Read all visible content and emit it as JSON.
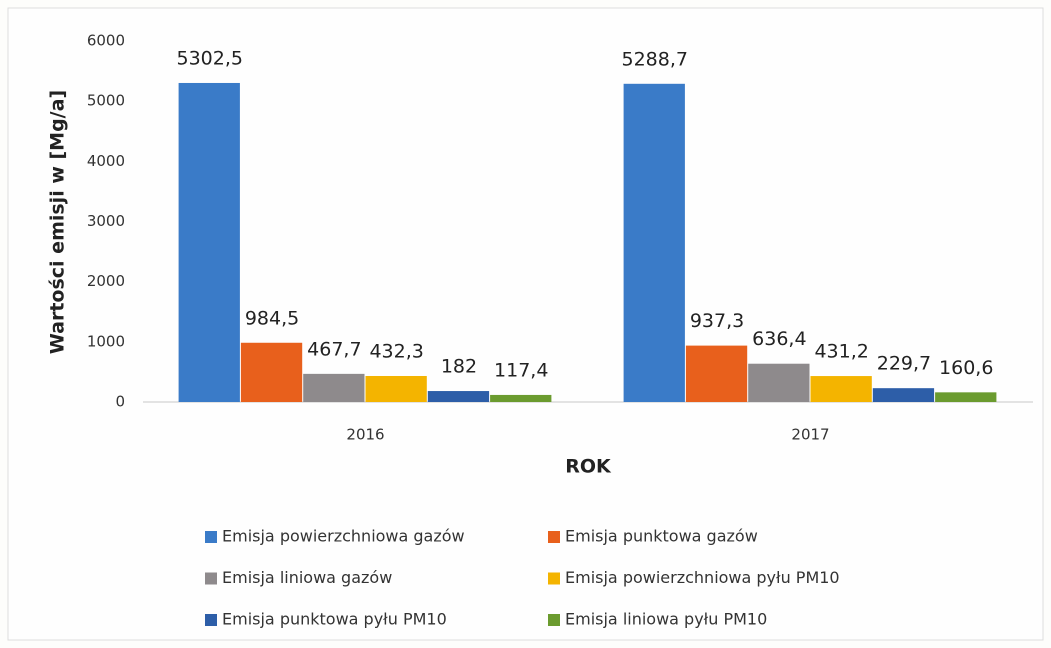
{
  "chart_data": {
    "type": "bar",
    "y_label": "Wartości emisji w [Mg/a]",
    "x_label": "ROK",
    "categories": [
      "2016",
      "2017"
    ],
    "series": [
      {
        "name": "Emisja powierzchniowa gazów",
        "color": "#3a7bc8",
        "values": [
          5302.5,
          5288.7
        ],
        "value_labels": [
          "5302,5",
          "5288,7"
        ]
      },
      {
        "name": "Emisja punktowa gazów",
        "color": "#e8601c",
        "values": [
          984.5,
          937.3
        ],
        "value_labels": [
          "984,5",
          "937,3"
        ]
      },
      {
        "name": "Emisja liniowa gazów",
        "color": "#8e8a8c",
        "values": [
          467.7,
          636.4
        ],
        "value_labels": [
          "467,7",
          "636,4"
        ]
      },
      {
        "name": "Emisja powierzchniowa pyłu PM10",
        "color": "#f4b400",
        "values": [
          432.3,
          431.2
        ],
        "value_labels": [
          "432,3",
          "431,2"
        ]
      },
      {
        "name": "Emisja punktowa pyłu PM10",
        "color": "#2d5ea8",
        "values": [
          182,
          229.7
        ],
        "value_labels": [
          "182",
          "229,7"
        ]
      },
      {
        "name": "Emisja liniowa pyłu PM10",
        "color": "#6b9b2f",
        "values": [
          117.4,
          160.6
        ],
        "value_labels": [
          "117,4",
          "160,6"
        ]
      }
    ],
    "ylim": [
      0,
      6000
    ],
    "yticks": [
      0,
      1000,
      2000,
      3000,
      4000,
      5000,
      6000
    ],
    "grid": false
  }
}
